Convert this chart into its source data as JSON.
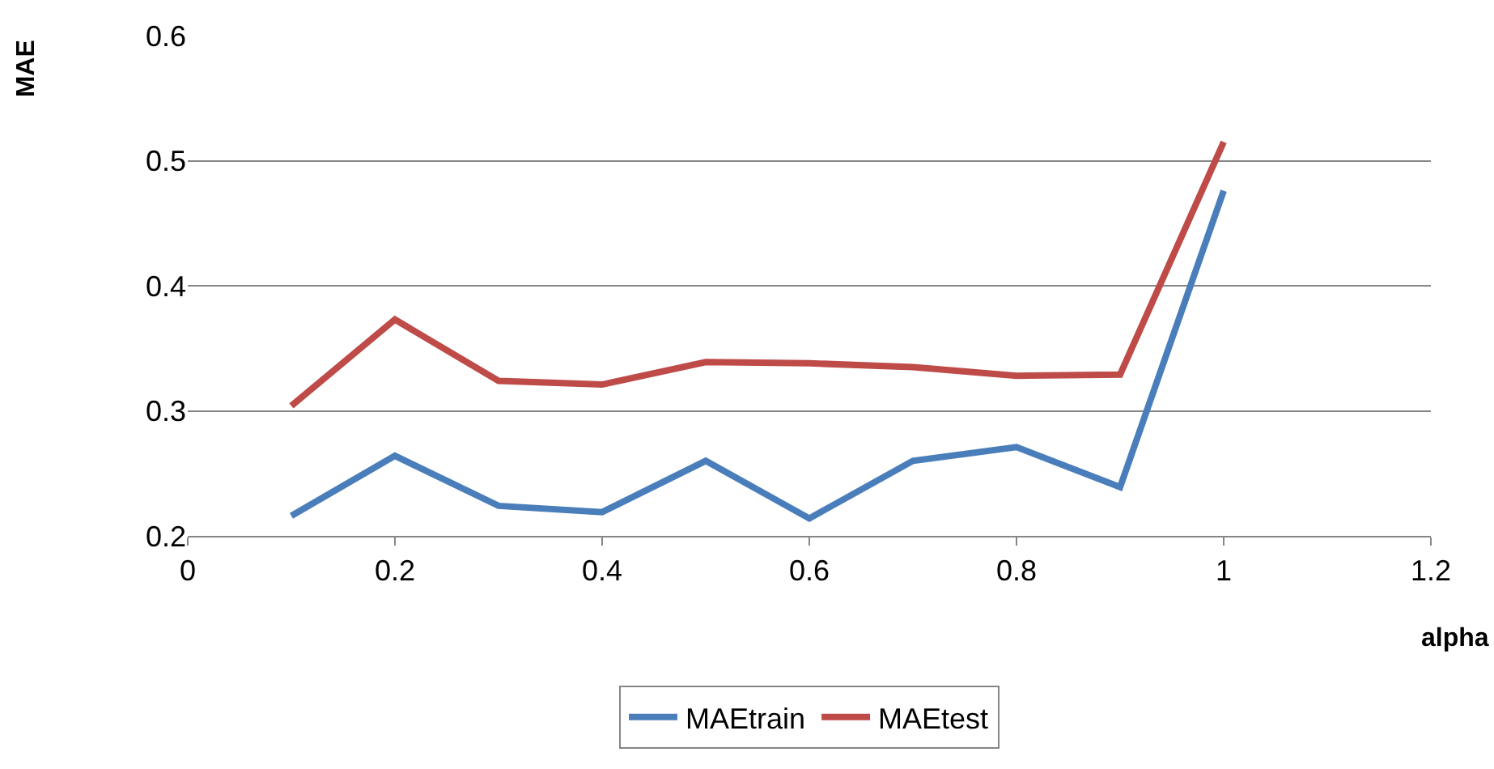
{
  "chart_data": {
    "type": "line",
    "xlabel": "alpha",
    "ylabel": "MAE",
    "x": [
      0.1,
      0.2,
      0.3,
      0.4,
      0.5,
      0.6,
      0.7,
      0.8,
      0.9,
      1.0
    ],
    "series": [
      {
        "name": "MAEtrain",
        "color": "#4a7ebb",
        "values": [
          0.216,
          0.264,
          0.224,
          0.219,
          0.26,
          0.214,
          0.26,
          0.271,
          0.239,
          0.476
        ]
      },
      {
        "name": "MAEtest",
        "color": "#be4b48",
        "values": [
          0.304,
          0.373,
          0.324,
          0.321,
          0.339,
          0.338,
          0.335,
          0.328,
          0.329,
          0.515
        ]
      }
    ],
    "xlim": [
      0,
      1.2
    ],
    "xticks": [
      0,
      0.2,
      0.4,
      0.6,
      0.8,
      1,
      1.2
    ],
    "ylim": [
      0.2,
      0.6
    ],
    "yticks": [
      0.2,
      0.3,
      0.4,
      0.5,
      0.6
    ],
    "grid": "y",
    "legend": "bottom",
    "marker": "none",
    "line_style": "solid"
  }
}
